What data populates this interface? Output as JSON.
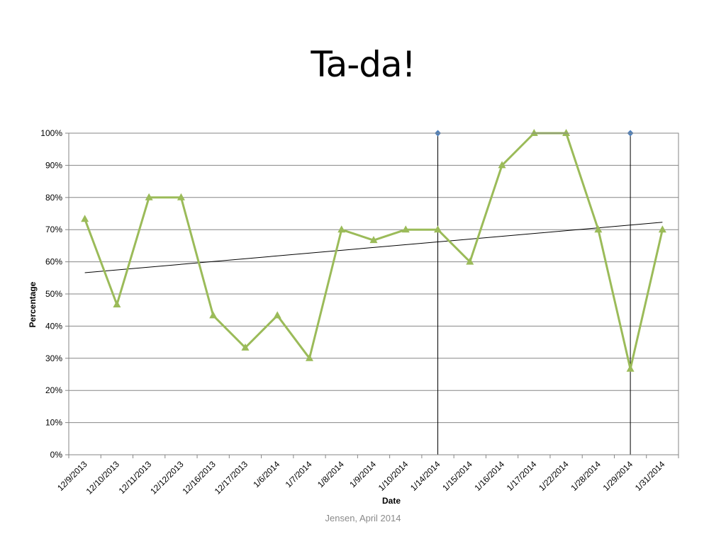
{
  "slide": {
    "title": "Ta-da!",
    "footer": "Jensen, April 2014"
  },
  "chart_data": {
    "type": "line",
    "title": "",
    "xlabel": "Date",
    "ylabel": "Percentage",
    "ylim": [
      0,
      100
    ],
    "yticks": [
      "0%",
      "10%",
      "20%",
      "30%",
      "40%",
      "50%",
      "60%",
      "70%",
      "80%",
      "90%",
      "100%"
    ],
    "grid": true,
    "categories": [
      "12/9/2013",
      "12/10/2013",
      "12/11/2013",
      "12/12/2013",
      "12/16/2013",
      "12/17/2013",
      "1/6/2014",
      "1/7/2014",
      "1/8/2014",
      "1/9/2014",
      "1/10/2014",
      "1/14/2014",
      "1/15/2014",
      "1/16/2014",
      "1/17/2014",
      "1/22/2014",
      "1/28/2014",
      "1/29/2014",
      "1/31/2014"
    ],
    "series": [
      {
        "values": [
          73.3,
          46.7,
          80,
          80,
          43.3,
          33.3,
          43.3,
          30,
          70,
          66.7,
          70,
          70,
          60,
          90,
          100,
          100,
          70,
          26.7,
          70
        ],
        "color": "#9bbb59",
        "marker": "triangle"
      }
    ],
    "trendline": {
      "start": 56.6,
      "end": 72.3,
      "color": "#000000"
    },
    "phase_markers": [
      {
        "category": "1/14/2014",
        "value": 100,
        "color": "#4f81bd"
      },
      {
        "category": "1/29/2014",
        "value": 100,
        "color": "#4f81bd"
      }
    ]
  }
}
